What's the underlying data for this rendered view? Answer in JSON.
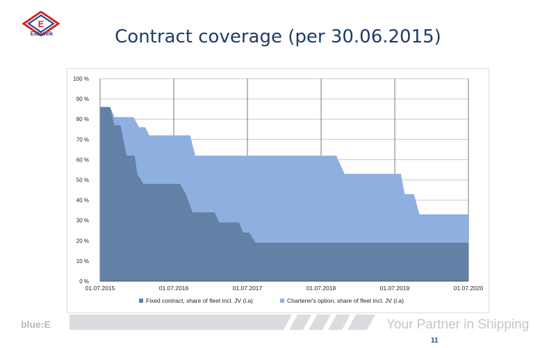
{
  "brand": {
    "logo_letter": "E",
    "logo_name": "Eidesvik",
    "footer_left": "blue:E",
    "footer_right": "Your Partner in Shipping",
    "page_number": "11",
    "logo_red": "#d1262b",
    "logo_blue": "#1d3f8f"
  },
  "chart_data": {
    "type": "area",
    "title": "Contract coverage (per 30.06.2015)",
    "xlabel": "",
    "ylabel": "",
    "x_ticks": [
      "01.07.2015",
      "01.07.2016",
      "01.07.2017",
      "01.07.2018",
      "01.07.2019",
      "01.07.2020"
    ],
    "y_ticks": [
      "0 %",
      "10 %",
      "20 %",
      "30 %",
      "40 %",
      "50 %",
      "60 %",
      "70 %",
      "80 %",
      "90 %",
      "100 %"
    ],
    "xlim": [
      "2015-07-01",
      "2020-07-01"
    ],
    "ylim": [
      0,
      100
    ],
    "grid": true,
    "legend": "bottom",
    "series": [
      {
        "name": "Fixed contract, share of fleet incl. JV (l.a)",
        "color": "#6380a6",
        "points": [
          [
            "2015-07-01",
            86
          ],
          [
            "2015-08-20",
            86
          ],
          [
            "2015-09-10",
            77
          ],
          [
            "2015-10-10",
            77
          ],
          [
            "2015-10-20",
            72
          ],
          [
            "2015-11-10",
            62
          ],
          [
            "2015-12-20",
            62
          ],
          [
            "2016-01-01",
            53
          ],
          [
            "2016-02-01",
            48
          ],
          [
            "2016-08-01",
            48
          ],
          [
            "2016-08-30",
            43
          ],
          [
            "2016-10-01",
            34
          ],
          [
            "2017-01-20",
            34
          ],
          [
            "2017-02-10",
            29
          ],
          [
            "2017-05-20",
            29
          ],
          [
            "2017-06-10",
            24
          ],
          [
            "2017-07-10",
            24
          ],
          [
            "2017-08-10",
            19
          ],
          [
            "2020-07-01",
            19
          ]
        ]
      },
      {
        "name": "Charterer's option, share of fleet incl. JV (l.a)",
        "color": "#8eb0e0",
        "points": [
          [
            "2015-07-01",
            86
          ],
          [
            "2015-08-20",
            86
          ],
          [
            "2015-09-10",
            81
          ],
          [
            "2015-12-15",
            81
          ],
          [
            "2016-01-10",
            76
          ],
          [
            "2016-02-10",
            76
          ],
          [
            "2016-03-01",
            72
          ],
          [
            "2016-09-20",
            72
          ],
          [
            "2016-10-15",
            62
          ],
          [
            "2018-09-15",
            62
          ],
          [
            "2018-10-25",
            53
          ],
          [
            "2019-08-01",
            53
          ],
          [
            "2019-08-20",
            43
          ],
          [
            "2019-10-05",
            43
          ],
          [
            "2019-11-01",
            33
          ],
          [
            "2020-07-01",
            33
          ]
        ]
      }
    ]
  }
}
